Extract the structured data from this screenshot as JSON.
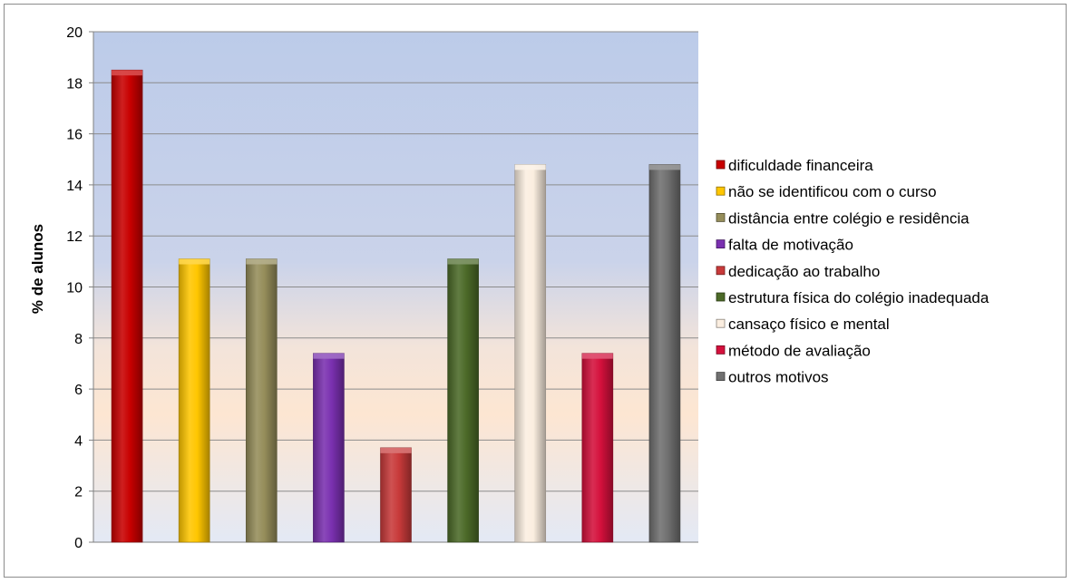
{
  "chart_data": {
    "type": "bar",
    "title": "",
    "xlabel": "",
    "ylabel": "% de alunos",
    "ylim": [
      0,
      20
    ],
    "yticks": [
      0,
      2,
      4,
      6,
      8,
      10,
      12,
      14,
      16,
      18,
      20
    ],
    "grid": true,
    "legend_position": "right",
    "categories": [
      "dificuldade financeira",
      "não se identificou com o curso",
      "distância entre colégio e residência",
      "falta de motivação",
      "dedicação ao trabalho",
      "estrutura física do colégio inadequada",
      "cansaço físico e mental",
      "método de avaliação",
      "outros motivos"
    ],
    "values": [
      18.5,
      11.1,
      11.1,
      7.4,
      3.7,
      11.1,
      14.8,
      7.4,
      14.8
    ],
    "colors": [
      "#c80000",
      "#ffc600",
      "#958d5a",
      "#7a30b0",
      "#c83a3a",
      "#4c6a28",
      "#fbeee0",
      "#d4103c",
      "#707070"
    ]
  }
}
